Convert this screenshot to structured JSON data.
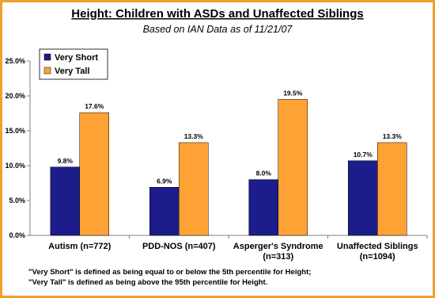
{
  "chart_data": {
    "type": "bar",
    "title": "Height: Children with ASDs and Unaffected Siblings",
    "subtitle": "Based on IAN Data as of 11/21/07",
    "categories": [
      "Autism (n=772)",
      "PDD-NOS (n=407)",
      "Asperger's Syndrome (n=313)",
      "Unaffected Siblings (n=1094)"
    ],
    "series": [
      {
        "name": "Very Short",
        "color": "#1c1c8a",
        "values": [
          9.8,
          6.9,
          8.0,
          10.7
        ],
        "value_labels": [
          "9.8%",
          "6.9%",
          "8.0%",
          "10.7%"
        ]
      },
      {
        "name": "Very Tall",
        "color": "#ffa235",
        "values": [
          17.6,
          13.3,
          19.5,
          13.3
        ],
        "value_labels": [
          "17.6%",
          "13.3%",
          "19.5%",
          "13.3%"
        ]
      }
    ],
    "ylim": [
      0,
      25
    ],
    "yticks": [
      {
        "value": 0,
        "label": "0.0%"
      },
      {
        "value": 5,
        "label": "5.0%"
      },
      {
        "value": 10,
        "label": "10.0%"
      },
      {
        "value": 15,
        "label": "15.0%"
      },
      {
        "value": 20,
        "label": "20.0%"
      },
      {
        "value": 25,
        "label": "25.0%"
      }
    ],
    "grid": false,
    "legend": "top-left",
    "notes": [
      "\"Very Short\" is defined as being equal to or below the 5th percentile for Height;",
      "\"Very Tall\" is defined as being above the 95th percentile for Height."
    ]
  }
}
